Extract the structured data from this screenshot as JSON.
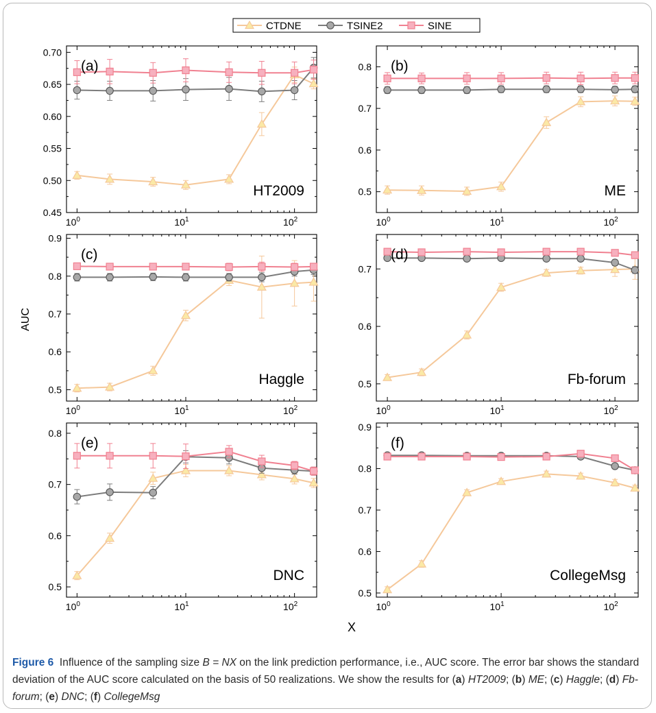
{
  "legend": {
    "items": [
      {
        "name": "CTDNE",
        "color": "#f5c89a",
        "fill": "#fbe9a6",
        "marker": "triangle"
      },
      {
        "name": "TSINE2",
        "color": "#7c7c7c",
        "fill": "#a8a8a8",
        "marker": "circle"
      },
      {
        "name": "SINE",
        "color": "#f08090",
        "fill": "#f7b0be",
        "marker": "square"
      }
    ]
  },
  "shared_axes": {
    "ylabel": "AUC",
    "xlabel": "X"
  },
  "chart_data": [
    {
      "type": "line",
      "panel": "(a)",
      "name": "HT2009",
      "xscale": "log",
      "x": [
        1,
        2,
        5,
        10,
        25,
        50,
        100,
        150
      ],
      "xlim": [
        0.8,
        160
      ],
      "ylim": [
        0.45,
        0.71
      ],
      "yticks": [
        "0.45",
        "0.50",
        "0.55",
        "0.60",
        "0.65",
        "0.70"
      ],
      "xticks": [
        "10^0",
        "10^1",
        "10^2"
      ],
      "series": [
        {
          "name": "CTDNE",
          "values": [
            0.508,
            0.502,
            0.498,
            0.493,
            0.502,
            0.588,
            0.665,
            0.651
          ],
          "err": [
            0.006,
            0.008,
            0.007,
            0.007,
            0.007,
            0.018,
            0.012,
            0.008
          ]
        },
        {
          "name": "TSINE2",
          "values": [
            0.641,
            0.64,
            0.64,
            0.642,
            0.643,
            0.639,
            0.641,
            0.676
          ],
          "err": [
            0.014,
            0.015,
            0.016,
            0.017,
            0.018,
            0.016,
            0.015,
            0.016
          ]
        },
        {
          "name": "SINE",
          "values": [
            0.669,
            0.67,
            0.668,
            0.672,
            0.669,
            0.668,
            0.668,
            0.673
          ],
          "err": [
            0.018,
            0.019,
            0.016,
            0.018,
            0.016,
            0.018,
            0.017,
            0.015
          ]
        }
      ]
    },
    {
      "type": "line",
      "panel": "(b)",
      "name": "ME",
      "xscale": "log",
      "x": [
        1,
        2,
        5,
        10,
        25,
        50,
        100,
        150
      ],
      "xlim": [
        0.8,
        160
      ],
      "ylim": [
        0.45,
        0.85
      ],
      "yticks": [
        "0.5",
        "0.6",
        "0.7",
        "0.8"
      ],
      "xticks": [
        "10^0",
        "10^1",
        "10^2"
      ],
      "series": [
        {
          "name": "CTDNE",
          "values": [
            0.504,
            0.503,
            0.501,
            0.512,
            0.666,
            0.716,
            0.718,
            0.717
          ],
          "err": [
            0.01,
            0.011,
            0.01,
            0.011,
            0.014,
            0.012,
            0.012,
            0.01
          ]
        },
        {
          "name": "TSINE2",
          "values": [
            0.744,
            0.744,
            0.744,
            0.746,
            0.746,
            0.746,
            0.745,
            0.746
          ],
          "err": [
            0.008,
            0.008,
            0.008,
            0.008,
            0.008,
            0.008,
            0.008,
            0.008
          ]
        },
        {
          "name": "SINE",
          "values": [
            0.772,
            0.772,
            0.772,
            0.772,
            0.773,
            0.772,
            0.773,
            0.773
          ],
          "err": [
            0.014,
            0.013,
            0.014,
            0.014,
            0.014,
            0.015,
            0.014,
            0.014
          ]
        }
      ]
    },
    {
      "type": "line",
      "panel": "(c)",
      "name": "Haggle",
      "xscale": "log",
      "x": [
        1,
        2,
        5,
        10,
        25,
        50,
        100,
        150
      ],
      "xlim": [
        0.8,
        160
      ],
      "ylim": [
        0.47,
        0.91
      ],
      "yticks": [
        "0.5",
        "0.6",
        "0.7",
        "0.8",
        "0.9"
      ],
      "xticks": [
        "10^0",
        "10^1",
        "10^2"
      ],
      "series": [
        {
          "name": "CTDNE",
          "values": [
            0.504,
            0.507,
            0.55,
            0.696,
            0.789,
            0.771,
            0.781,
            0.784
          ],
          "err": [
            0.01,
            0.01,
            0.012,
            0.014,
            0.014,
            0.082,
            0.06,
            0.05
          ]
        },
        {
          "name": "TSINE2",
          "values": [
            0.797,
            0.797,
            0.798,
            0.797,
            0.797,
            0.797,
            0.812,
            0.816
          ],
          "err": [
            0.01,
            0.01,
            0.01,
            0.01,
            0.01,
            0.012,
            0.012,
            0.012
          ]
        },
        {
          "name": "SINE",
          "values": [
            0.826,
            0.825,
            0.825,
            0.825,
            0.824,
            0.825,
            0.824,
            0.825
          ],
          "err": [
            0.008,
            0.008,
            0.008,
            0.008,
            0.01,
            0.012,
            0.01,
            0.008
          ]
        }
      ]
    },
    {
      "type": "line",
      "panel": "(d)",
      "name": "Fb-forum",
      "xscale": "log",
      "x": [
        1,
        2,
        5,
        10,
        25,
        50,
        100,
        150
      ],
      "xlim": [
        0.8,
        160
      ],
      "ylim": [
        0.47,
        0.76
      ],
      "yticks": [
        "0.5",
        "0.6",
        "0.7"
      ],
      "xticks": [
        "10^0",
        "10^1",
        "10^2"
      ],
      "series": [
        {
          "name": "CTDNE",
          "values": [
            0.511,
            0.52,
            0.585,
            0.668,
            0.693,
            0.697,
            0.699,
            0.7
          ],
          "err": [
            0.005,
            0.006,
            0.007,
            0.007,
            0.006,
            0.006,
            0.012,
            0.018
          ]
        },
        {
          "name": "TSINE2",
          "values": [
            0.719,
            0.719,
            0.718,
            0.719,
            0.718,
            0.718,
            0.711,
            0.698
          ],
          "err": [
            0.004,
            0.004,
            0.004,
            0.004,
            0.004,
            0.004,
            0.005,
            0.006
          ]
        },
        {
          "name": "SINE",
          "values": [
            0.73,
            0.729,
            0.73,
            0.729,
            0.73,
            0.73,
            0.728,
            0.724
          ],
          "err": [
            0.004,
            0.004,
            0.004,
            0.004,
            0.004,
            0.004,
            0.004,
            0.004
          ]
        }
      ]
    },
    {
      "type": "line",
      "panel": "(e)",
      "name": "DNC",
      "xscale": "log",
      "x": [
        1,
        2,
        5,
        10,
        25,
        50,
        100,
        150
      ],
      "xlim": [
        0.8,
        160
      ],
      "ylim": [
        0.48,
        0.82
      ],
      "yticks": [
        "0.5",
        "0.6",
        "0.7",
        "0.8"
      ],
      "xticks": [
        "10^0",
        "10^1",
        "10^2"
      ],
      "series": [
        {
          "name": "CTDNE",
          "values": [
            0.522,
            0.595,
            0.712,
            0.727,
            0.727,
            0.719,
            0.711,
            0.703
          ],
          "err": [
            0.008,
            0.01,
            0.012,
            0.012,
            0.01,
            0.01,
            0.01,
            0.009
          ]
        },
        {
          "name": "TSINE2",
          "values": [
            0.676,
            0.685,
            0.684,
            0.754,
            0.752,
            0.732,
            0.728,
            0.726
          ],
          "err": [
            0.014,
            0.016,
            0.012,
            0.012,
            0.012,
            0.01,
            0.008,
            0.008
          ]
        },
        {
          "name": "SINE",
          "values": [
            0.756,
            0.756,
            0.756,
            0.755,
            0.764,
            0.745,
            0.737,
            0.726
          ],
          "err": [
            0.024,
            0.024,
            0.024,
            0.024,
            0.012,
            0.012,
            0.008,
            0.008
          ]
        }
      ]
    },
    {
      "type": "line",
      "panel": "(f)",
      "name": "CollegeMsg",
      "xscale": "log",
      "x": [
        1,
        2,
        5,
        10,
        25,
        50,
        100,
        150
      ],
      "xlim": [
        0.8,
        160
      ],
      "ylim": [
        0.49,
        0.91
      ],
      "yticks": [
        "0.5",
        "0.6",
        "0.7",
        "0.8",
        "0.9"
      ],
      "xticks": [
        "10^0",
        "10^1",
        "10^2"
      ],
      "series": [
        {
          "name": "CTDNE",
          "values": [
            0.508,
            0.57,
            0.742,
            0.769,
            0.787,
            0.782,
            0.766,
            0.753
          ],
          "err": [
            0.007,
            0.008,
            0.007,
            0.007,
            0.007,
            0.007,
            0.008,
            0.007
          ]
        },
        {
          "name": "TSINE2",
          "values": [
            0.832,
            0.832,
            0.831,
            0.831,
            0.831,
            0.829,
            0.806,
            0.796
          ],
          "err": [
            0.004,
            0.004,
            0.004,
            0.004,
            0.004,
            0.004,
            0.005,
            0.005
          ]
        },
        {
          "name": "SINE",
          "values": [
            0.829,
            0.829,
            0.829,
            0.828,
            0.829,
            0.836,
            0.825,
            0.796
          ],
          "err": [
            0.004,
            0.004,
            0.004,
            0.004,
            0.004,
            0.006,
            0.006,
            0.006
          ]
        }
      ]
    }
  ],
  "caption": {
    "label": "Figure 6",
    "text_1": "Influence of the sampling size ",
    "formula": "B = NX",
    "text_2": " on the link prediction performance, i.e., AUC score. The error bar shows the standard deviation of the AUC score calculated on the basis of 50 realizations. We show the results for (",
    "items": [
      {
        "letter": "a",
        "name": "HT2009"
      },
      {
        "letter": "b",
        "name": "ME"
      },
      {
        "letter": "c",
        "name": "Haggle"
      },
      {
        "letter": "d",
        "name": "Fb-forum"
      },
      {
        "letter": "e",
        "name": "DNC"
      },
      {
        "letter": "f",
        "name": "CollegeMsg"
      }
    ]
  }
}
